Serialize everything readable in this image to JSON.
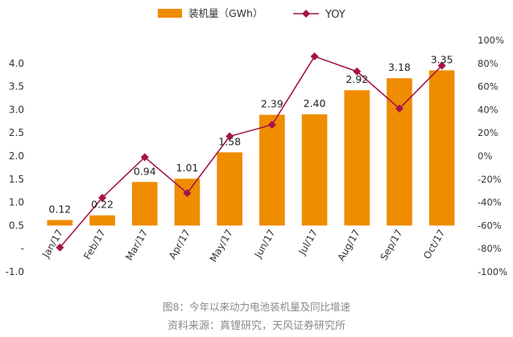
{
  "chart_data": {
    "type": "bar",
    "categories": [
      "Jan/17",
      "Feb/17",
      "Mar/17",
      "Apr/17",
      "May/17",
      "Jun/17",
      "Jul/17",
      "Aug/17",
      "Sep/17",
      "Oct/17"
    ],
    "series": [
      {
        "name": "装机量（GWh）",
        "type": "bar",
        "axis": "left",
        "color": "#ef8c00",
        "values": [
          0.12,
          0.22,
          0.94,
          1.01,
          1.58,
          2.39,
          2.4,
          2.92,
          3.18,
          3.35
        ],
        "labels": [
          "0.12",
          "0.22",
          "0.94",
          "1.01",
          "1.58",
          "2.39",
          "2.40",
          "2.92",
          "3.18",
          "3.35"
        ]
      },
      {
        "name": "YOY",
        "type": "line",
        "axis": "right",
        "color": "#a3154a",
        "marker": "diamond",
        "values": [
          -79,
          -36,
          -1,
          -32,
          17,
          27,
          86,
          73,
          41,
          78
        ]
      }
    ],
    "y_left": {
      "min": -1.0,
      "max": 4.0,
      "step": 0.5,
      "ticks": [
        "-1.0",
        "-",
        "0.5",
        "1.0",
        "1.5",
        "2.0",
        "2.5",
        "3.0",
        "3.5",
        "4.0"
      ]
    },
    "y_right": {
      "min": -100,
      "max": 100,
      "step": 20,
      "ticks": [
        "-100%",
        "-80%",
        "-60%",
        "-40%",
        "-20%",
        "0%",
        "20%",
        "40%",
        "60%",
        "80%",
        "100%"
      ]
    },
    "legend_position": "top",
    "grid": false
  },
  "caption": {
    "line1": "图8：今年以来动力电池装机量及同比增速",
    "line2": "资料来源：真锂研究，天风证券研究所"
  }
}
